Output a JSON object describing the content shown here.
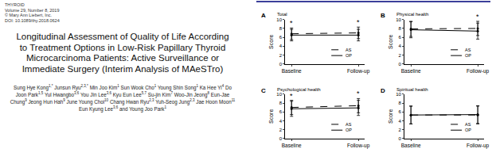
{
  "header": {
    "journal": "THYROID",
    "volume": "Volume 29, Number 8, 2019",
    "copyright": "© Mary Ann Liebert, Inc.",
    "doi": "DOI: 10.1089/thy.2018.0624"
  },
  "title": "Longitudinal Assessment of Quality of Life According to Treatment Options in Low-Risk Papillary Thyroid Microcarcinoma Patients: Active Surveillance or Immediate Surgery (Interim Analysis of MAeSTro)",
  "authors": [
    {
      "name": "Sung Hye Kong",
      "sup": "1,*"
    },
    {
      "name": "Junsun Ryu",
      "sup": "2,3,*"
    },
    {
      "name": "Min Joo Kim",
      "sup": "1"
    },
    {
      "name": "Sun Wook Cho",
      "sup": "1"
    },
    {
      "name": "Young Shin Song",
      "sup": "1"
    },
    {
      "name": "Ka Hee Yi",
      "sup": "4"
    },
    {
      "name": "Do Joon Park",
      "sup": "1,5"
    },
    {
      "name": "Yul Hwangbo",
      "sup": "3,6"
    },
    {
      "name": "You Jin Lee",
      "sup": "3,6"
    },
    {
      "name": "Kyu Eun Lee",
      "sup": "5,7"
    },
    {
      "name": "Su-jin Kim",
      "sup": "7"
    },
    {
      "name": "Woo-Jin Jeong",
      "sup": "8"
    },
    {
      "name": "Eun-Jae Chung",
      "sup": "9"
    },
    {
      "name": "Jeong Hun Hah",
      "sup": "9"
    },
    {
      "name": "June Young Choi",
      "sup": "10"
    },
    {
      "name": "Chang Hwan Ryu",
      "sup": "2,3"
    },
    {
      "name": "Yuh-Seog Jung",
      "sup": "2,3"
    },
    {
      "name": "Jae Hoon Moon",
      "sup": "11"
    },
    {
      "name": "Eun Kyung Lee",
      "sup": "3,6"
    },
    {
      "name": "Young Joo Park",
      "sup": "1"
    }
  ],
  "author_conjunction": "and",
  "chart_data": [
    {
      "type": "line",
      "panel_label": "A",
      "title": "Total",
      "categories": [
        "Baseline",
        "Follow-up"
      ],
      "ylabel": "Score",
      "ylim": [
        0,
        10
      ],
      "yticks": [
        0,
        2,
        4,
        6,
        8,
        10
      ],
      "series": [
        {
          "name": "AS",
          "color": "#000000",
          "line_style": "dashed",
          "values": [
            6.8,
            7.0
          ],
          "error": [
            1.3,
            1.3
          ]
        },
        {
          "name": "OP",
          "color": "#000000",
          "line_style": "solid",
          "values": [
            6.5,
            6.5
          ],
          "error": [
            1.3,
            1.3
          ]
        }
      ],
      "annotations": [
        {
          "x": "Baseline",
          "text": "*"
        },
        {
          "x": "Follow-up",
          "text": "*"
        }
      ]
    },
    {
      "type": "line",
      "panel_label": "B",
      "title": "Physical health",
      "categories": [
        "Baseline",
        "Follow-up"
      ],
      "ylabel": "Score",
      "ylim": [
        0,
        10
      ],
      "yticks": [
        0,
        2,
        4,
        6,
        8,
        10
      ],
      "series": [
        {
          "name": "AS",
          "color": "#000000",
          "line_style": "dashed",
          "values": [
            7.9,
            8.0
          ],
          "error": [
            1.7,
            1.6
          ]
        },
        {
          "name": "OP",
          "color": "#000000",
          "line_style": "solid",
          "values": [
            7.7,
            7.4
          ],
          "error": [
            1.8,
            1.8
          ]
        }
      ],
      "annotations": [
        {
          "x": "Follow-up",
          "text": "*"
        }
      ]
    },
    {
      "type": "line",
      "panel_label": "C",
      "title": "Psychological health",
      "categories": [
        "Baseline",
        "Follow-up"
      ],
      "ylabel": "Score",
      "ylim": [
        0,
        10
      ],
      "yticks": [
        0,
        2,
        4,
        6,
        8,
        10
      ],
      "series": [
        {
          "name": "AS",
          "color": "#000000",
          "line_style": "dashed",
          "values": [
            7.0,
            7.4
          ],
          "error": [
            1.6,
            1.6
          ]
        },
        {
          "name": "OP",
          "color": "#000000",
          "line_style": "solid",
          "values": [
            6.7,
            6.9
          ],
          "error": [
            1.7,
            1.7
          ]
        }
      ],
      "annotations": [
        {
          "x": "Baseline",
          "text": "*"
        },
        {
          "x": "Follow-up",
          "text": "*"
        }
      ]
    },
    {
      "type": "line",
      "panel_label": "D",
      "title": "Spiritual health",
      "categories": [
        "Baseline",
        "Follow-up"
      ],
      "ylabel": "Score",
      "ylim": [
        0,
        10
      ],
      "yticks": [
        0,
        2,
        4,
        6,
        8,
        10
      ],
      "series": [
        {
          "name": "AS",
          "color": "#000000",
          "line_style": "dashed",
          "values": [
            5.3,
            5.3
          ],
          "error": [
            2.0,
            2.0
          ]
        },
        {
          "name": "OP",
          "color": "#000000",
          "line_style": "solid",
          "values": [
            5.3,
            5.4
          ],
          "error": [
            2.0,
            2.0
          ]
        }
      ],
      "annotations": []
    }
  ]
}
